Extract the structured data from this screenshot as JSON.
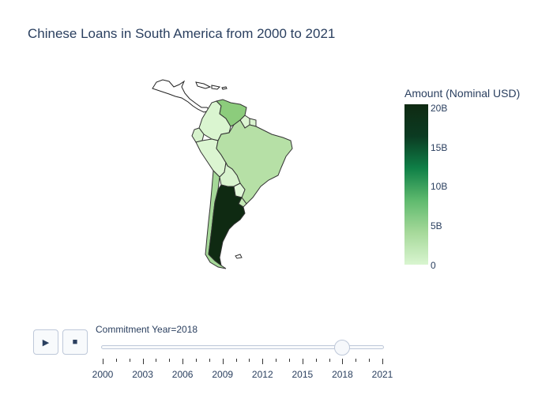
{
  "title": "Chinese Loans in South America from 2000 to 2021",
  "colorbar": {
    "title": "Amount (Nominal USD)",
    "ticks": [
      "20B",
      "15B",
      "10B",
      "5B",
      "0"
    ],
    "colors": [
      "#d9f5d0",
      "#a6d99a",
      "#5fba6e",
      "#0f8047",
      "#0b3b22",
      "#0f2a12"
    ]
  },
  "slider": {
    "label": "Commitment Year=2018",
    "current_value": 2018,
    "min": 2000,
    "max": 2021,
    "tick_labels": [
      "2000",
      "2003",
      "2006",
      "2009",
      "2012",
      "2015",
      "2018",
      "2021"
    ]
  },
  "buttons": {
    "play": "▶",
    "stop": "■"
  },
  "chart_data": {
    "type": "choropleth",
    "title": "Chinese Loans in South America from 2000 to 2021",
    "colorbar_title": "Amount (Nominal USD)",
    "range": [
      0,
      20000000000
    ],
    "year": 2018,
    "regions": [
      {
        "name": "Argentina",
        "value": 20000000000,
        "color": "#0f2a12"
      },
      {
        "name": "Venezuela",
        "value": 5000000000,
        "color": "#8ccc7c"
      },
      {
        "name": "Brazil",
        "value": 2500000000,
        "color": "#b6e0a6"
      },
      {
        "name": "Ecuador",
        "value": 700000000,
        "color": "#d6f2cc"
      },
      {
        "name": "Colombia",
        "value": 400000000,
        "color": "#daf5d0"
      },
      {
        "name": "Peru",
        "value": 300000000,
        "color": "#dbf5d1"
      },
      {
        "name": "Bolivia",
        "value": 500000000,
        "color": "#d8f3ce"
      },
      {
        "name": "Chile",
        "value": 3000000000,
        "color": "#a5d898"
      },
      {
        "name": "Uruguay",
        "value": 1500000000,
        "color": "#c3e8b5"
      },
      {
        "name": "Paraguay",
        "value": 0,
        "color": "#e0f7d8"
      },
      {
        "name": "Guyana",
        "value": 200000000,
        "color": "#dcf5d2"
      },
      {
        "name": "Suriname",
        "value": 300000000,
        "color": "#daf4cf"
      }
    ]
  }
}
